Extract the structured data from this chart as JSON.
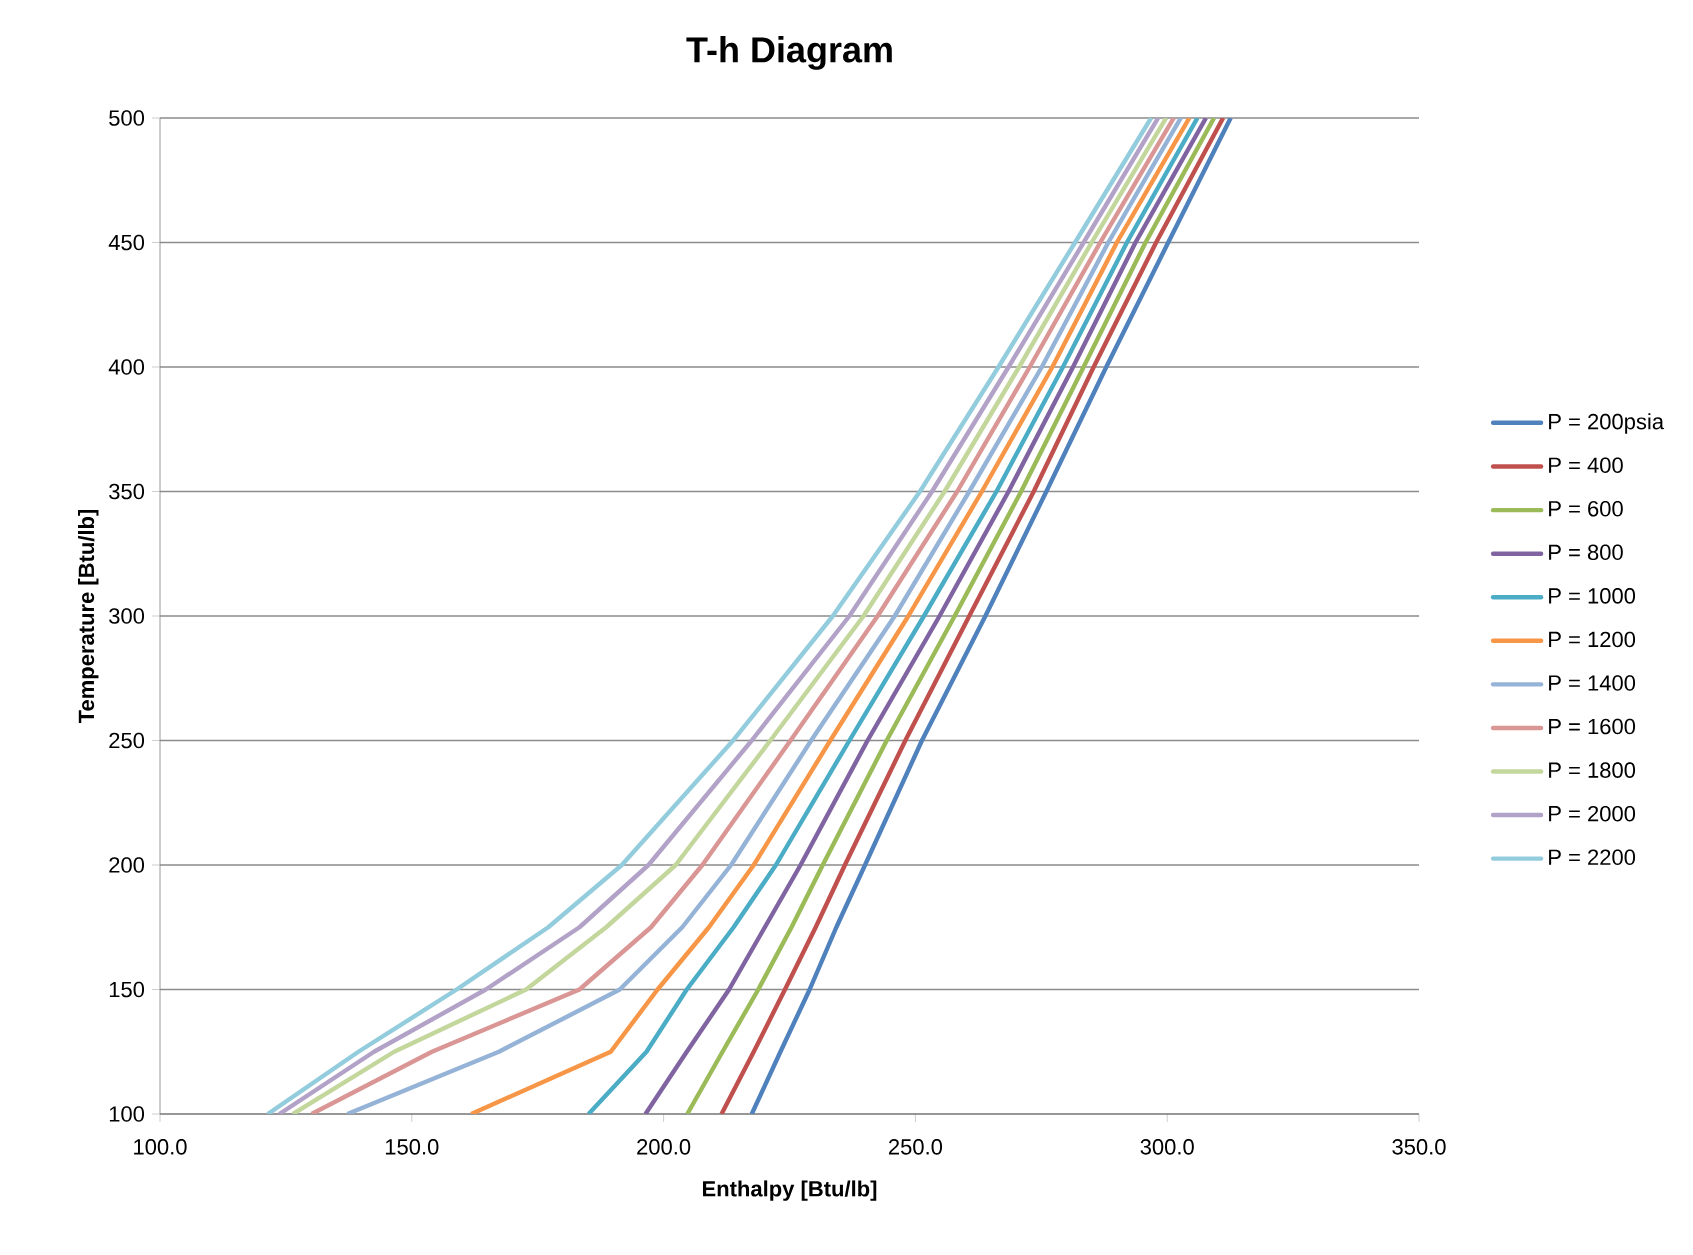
{
  "chart_data": {
    "type": "line",
    "title": "T-h Diagram",
    "xlabel": "Enthalpy [Btu/lb]",
    "ylabel": "Temperature [Btu/lb]",
    "xlim": [
      100,
      350
    ],
    "ylim": [
      100,
      500
    ],
    "xticks": [
      {
        "value": 100,
        "label": "100.0"
      },
      {
        "value": 150,
        "label": "150.0"
      },
      {
        "value": 200,
        "label": "200.0"
      },
      {
        "value": 250,
        "label": "250.0"
      },
      {
        "value": 300,
        "label": "300.0"
      },
      {
        "value": 350,
        "label": "350.0"
      }
    ],
    "yticks": [
      100,
      150,
      200,
      250,
      300,
      350,
      400,
      450,
      500
    ],
    "grid": "y",
    "legend": "right",
    "series": [
      {
        "name": "P = 200psia",
        "color": "#4f81bd",
        "x": [
          217.5,
          223.2,
          229.0,
          234.3,
          240.0,
          251.3,
          263.9,
          276.0,
          287.9,
          300.2,
          312.6
        ],
        "values": [
          100,
          125,
          150,
          175,
          200,
          250,
          300,
          350,
          400,
          450,
          500
        ]
      },
      {
        "name": "P = 400",
        "color": "#c0504d",
        "x": [
          211.5,
          217.9,
          224.1,
          230.2,
          236.0,
          248.0,
          260.7,
          273.5,
          285.4,
          297.8,
          311.1
        ],
        "values": [
          100,
          125,
          150,
          175,
          200,
          250,
          300,
          350,
          400,
          450,
          500
        ]
      },
      {
        "name": "P = 600",
        "color": "#9bbb59",
        "x": [
          204.7,
          211.7,
          218.8,
          225.4,
          231.6,
          244.3,
          257.8,
          271.0,
          283.4,
          295.7,
          309.3
        ],
        "values": [
          100,
          125,
          150,
          175,
          200,
          250,
          300,
          350,
          400,
          450,
          500
        ]
      },
      {
        "name": "P = 800",
        "color": "#8064a2",
        "x": [
          196.4,
          204.6,
          213.0,
          220.1,
          227.2,
          240.5,
          254.8,
          268.5,
          281.3,
          293.7,
          307.7
        ],
        "values": [
          100,
          125,
          150,
          175,
          200,
          250,
          300,
          350,
          400,
          450,
          500
        ]
      },
      {
        "name": "P = 1000",
        "color": "#4bacc6",
        "x": [
          185.1,
          196.6,
          204.6,
          213.9,
          222.3,
          236.9,
          251.7,
          266.1,
          279.3,
          292.0,
          306.0
        ],
        "values": [
          100,
          125,
          150,
          175,
          200,
          250,
          300,
          350,
          400,
          450,
          500
        ]
      },
      {
        "name": "P = 1200",
        "color": "#f79646",
        "x": [
          161.8,
          189.5,
          198.8,
          209.0,
          217.9,
          233.1,
          248.6,
          263.2,
          277.2,
          290.0,
          304.4
        ],
        "values": [
          100,
          125,
          150,
          175,
          200,
          250,
          300,
          350,
          400,
          450,
          500
        ]
      },
      {
        "name": "P = 1400",
        "color": "#95b3d7",
        "x": [
          137.2,
          167.3,
          191.3,
          203.7,
          213.4,
          229.3,
          245.9,
          260.7,
          275.1,
          288.3,
          302.7
        ],
        "values": [
          100,
          125,
          150,
          175,
          200,
          250,
          300,
          350,
          400,
          450,
          500
        ]
      },
      {
        "name": "P = 1600",
        "color": "#d99694",
        "x": [
          130.1,
          154.0,
          183.3,
          197.5,
          207.7,
          225.2,
          242.5,
          258.3,
          272.7,
          286.7,
          301.3
        ],
        "values": [
          100,
          125,
          150,
          175,
          200,
          250,
          300,
          350,
          400,
          450,
          500
        ]
      },
      {
        "name": "P = 1800",
        "color": "#c3d69b",
        "x": [
          126.4,
          146.5,
          172.7,
          188.6,
          202.4,
          221.2,
          239.7,
          255.8,
          270.6,
          285.0,
          299.8
        ],
        "values": [
          100,
          125,
          150,
          175,
          200,
          250,
          300,
          350,
          400,
          450,
          500
        ]
      },
      {
        "name": "P = 2000",
        "color": "#b3a2c7",
        "x": [
          123.7,
          142.5,
          164.7,
          183.3,
          197.0,
          217.5,
          236.9,
          253.3,
          268.5,
          283.4,
          298.2
        ],
        "values": [
          100,
          125,
          150,
          175,
          200,
          250,
          300,
          350,
          400,
          450,
          500
        ]
      },
      {
        "name": "P = 2200",
        "color": "#93cddd",
        "x": [
          121.4,
          139.4,
          158.9,
          177.1,
          191.7,
          213.8,
          233.6,
          250.9,
          266.5,
          281.7,
          296.8
        ],
        "values": [
          100,
          125,
          150,
          175,
          200,
          250,
          300,
          350,
          400,
          450,
          500
        ]
      }
    ]
  }
}
